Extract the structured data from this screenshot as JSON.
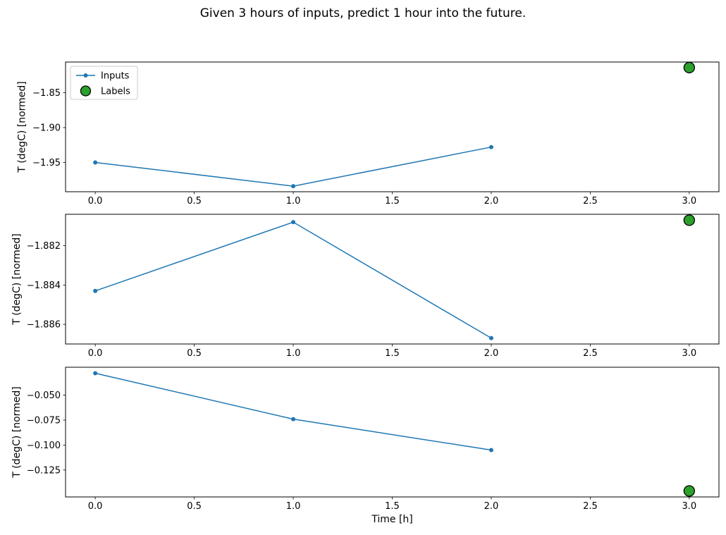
{
  "title": "Given 3 hours of inputs, predict 1 hour into the future.",
  "xlabel": "Time [h]",
  "legend": {
    "entries": [
      "Inputs",
      "Labels"
    ],
    "position": "upper left",
    "subplot": 1
  },
  "colors": {
    "inputs": "#1f77b4",
    "labels_fill": "#2ca02c",
    "labels_edge": "#000000",
    "axes": "#000000",
    "background": "#ffffff",
    "legend_frame": "#cccccc"
  },
  "chart_data": [
    {
      "type": "line",
      "ylabel": "T (degC) [normed]",
      "x": [
        0,
        1,
        2
      ],
      "inputs": [
        -1.95,
        -1.984,
        -1.928
      ],
      "label": {
        "x": 3,
        "y": -1.814
      },
      "xticks": [
        0.0,
        0.5,
        1.0,
        1.5,
        2.0,
        2.5,
        3.0
      ],
      "xtick_labels": [
        "0.0",
        "0.5",
        "1.0",
        "1.5",
        "2.0",
        "2.5",
        "3.0"
      ],
      "yticks": [
        -1.85,
        -1.9,
        -1.95
      ],
      "ytick_labels": [
        "−1.85",
        "−1.90",
        "−1.95"
      ],
      "xlim": [
        -0.15,
        3.15
      ],
      "ylim": [
        -1.992,
        -1.806
      ],
      "grid": false
    },
    {
      "type": "line",
      "ylabel": "T (degC) [normed]",
      "x": [
        0,
        1,
        2
      ],
      "inputs": [
        -1.8843,
        -1.8808,
        -1.8867
      ],
      "label": {
        "x": 3,
        "y": -1.8807
      },
      "xticks": [
        0.0,
        0.5,
        1.0,
        1.5,
        2.0,
        2.5,
        3.0
      ],
      "xtick_labels": [
        "0.0",
        "0.5",
        "1.0",
        "1.5",
        "2.0",
        "2.5",
        "3.0"
      ],
      "yticks": [
        -1.882,
        -1.884,
        -1.886
      ],
      "ytick_labels": [
        "−1.882",
        "−1.884",
        "−1.886"
      ],
      "xlim": [
        -0.15,
        3.15
      ],
      "ylim": [
        -1.887,
        -1.8804
      ],
      "grid": false
    },
    {
      "type": "line",
      "ylabel": "T (degC) [normed]",
      "x": [
        0,
        1,
        2
      ],
      "inputs": [
        -0.028,
        -0.074,
        -0.105
      ],
      "label": {
        "x": 3,
        "y": -0.146
      },
      "xticks": [
        0.0,
        0.5,
        1.0,
        1.5,
        2.0,
        2.5,
        3.0
      ],
      "xtick_labels": [
        "0.0",
        "0.5",
        "1.0",
        "1.5",
        "2.0",
        "2.5",
        "3.0"
      ],
      "yticks": [
        -0.05,
        -0.075,
        -0.1,
        -0.125
      ],
      "ytick_labels": [
        "−0.050",
        "−0.075",
        "−0.100",
        "−0.125"
      ],
      "xlim": [
        -0.15,
        3.15
      ],
      "ylim": [
        -0.152,
        -0.022
      ],
      "grid": false
    }
  ]
}
